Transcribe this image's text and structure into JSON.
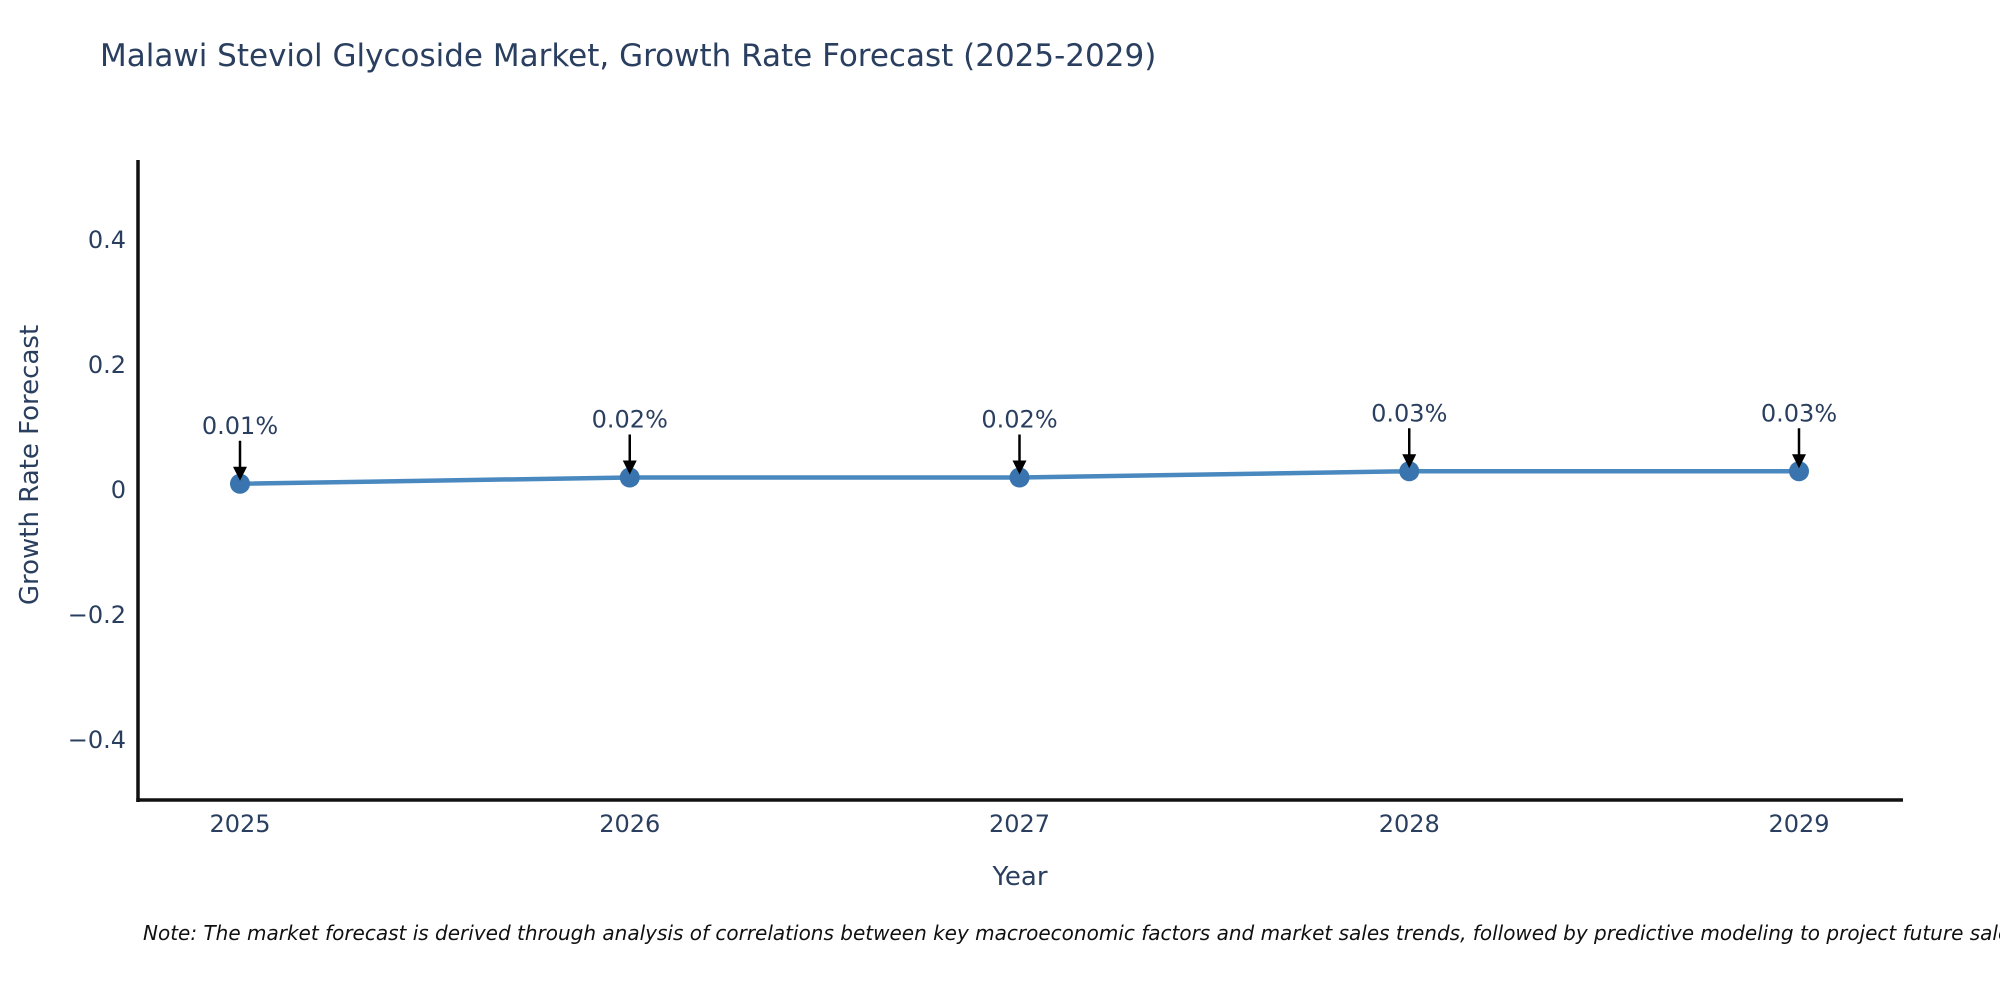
{
  "chart_data": {
    "type": "line",
    "title": "Malawi Steviol Glycoside Market, Growth Rate Forecast (2025-2029)",
    "xlabel": "Year",
    "ylabel": "Growth Rate Forecast",
    "categories": [
      "2025",
      "2026",
      "2027",
      "2028",
      "2029"
    ],
    "values": [
      0.01,
      0.02,
      0.02,
      0.03,
      0.03
    ],
    "point_labels": [
      "0.01%",
      "0.02%",
      "0.02%",
      "0.03%",
      "0.03%"
    ],
    "y_ticks": [
      {
        "value": 0.4,
        "label": "0.4"
      },
      {
        "value": 0.2,
        "label": "0.2"
      },
      {
        "value": 0,
        "label": "0"
      },
      {
        "value": -0.2,
        "label": "−0.2"
      },
      {
        "value": -0.4,
        "label": "−0.4"
      }
    ],
    "ylim": [
      -0.496,
      0.528
    ],
    "grid": false,
    "legend": "none",
    "colors": {
      "line": "#4a89c0",
      "marker": "#3a74ae",
      "arrow": "#000000",
      "axis": "#111111",
      "text": "#2a3f5f"
    }
  },
  "note": {
    "text": "Note: The market forecast is derived through analysis of correlations between key macroeconomic factors and market sales trends, followed by predictive modeling to project future sales."
  }
}
